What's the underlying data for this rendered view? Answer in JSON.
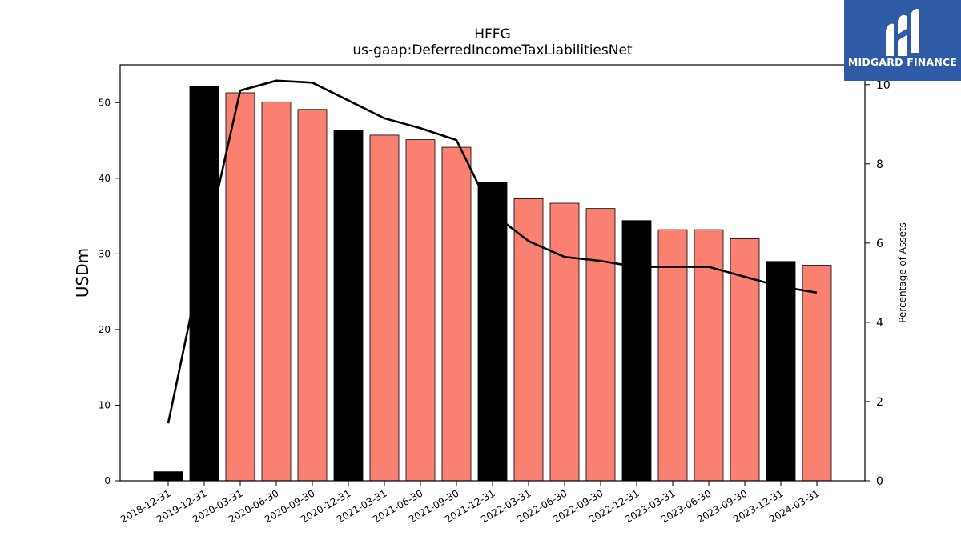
{
  "chart_data": {
    "type": "bar",
    "title": "HFFG",
    "subtitle": "us-gaap:DeferredIncomeTaxLiabilitiesNet",
    "ylabel": "USDm",
    "y2label": "Percentage of Assets",
    "ylim": [
      0,
      55
    ],
    "y2lim": [
      0,
      10.5
    ],
    "yticks": [
      0,
      10,
      20,
      30,
      40,
      50
    ],
    "y2ticks": [
      0,
      2,
      4,
      6,
      8,
      10
    ],
    "categories": [
      "2018-12-31",
      "2019-12-31",
      "2020-03-31",
      "2020-06-30",
      "2020-09-30",
      "2020-12-31",
      "2021-03-31",
      "2021-06-30",
      "2021-09-30",
      "2021-12-31",
      "2022-03-31",
      "2022-06-30",
      "2022-09-30",
      "2022-12-31",
      "2023-03-31",
      "2023-06-30",
      "2023-09-30",
      "2023-12-31",
      "2024-03-31"
    ],
    "series": [
      {
        "type": "bar",
        "values": [
          1.2,
          52.2,
          51.3,
          50.1,
          49.1,
          46.3,
          45.7,
          45.1,
          44.1,
          39.5,
          37.3,
          36.7,
          36.0,
          34.4,
          33.2,
          33.2,
          32.0,
          29.0,
          28.5
        ]
      },
      {
        "type": "line",
        "axis": "right",
        "values": [
          1.45,
          5.8,
          9.85,
          10.1,
          10.05,
          9.6,
          9.15,
          8.9,
          8.6,
          6.75,
          6.05,
          5.65,
          5.55,
          5.4,
          5.4,
          5.4,
          5.15,
          4.9,
          4.75
        ]
      }
    ],
    "colors": {
      "year_end_bar": "#000000",
      "quarter_bar": "#fa8072",
      "line": "#000000"
    },
    "year_end_flags": [
      true,
      true,
      false,
      false,
      false,
      true,
      false,
      false,
      false,
      true,
      false,
      false,
      false,
      true,
      false,
      false,
      false,
      true,
      false
    ]
  },
  "logo": {
    "text": "MIDGARD FINANCE",
    "icon": "midgard-m-icon",
    "background": "#2f5aa6"
  }
}
